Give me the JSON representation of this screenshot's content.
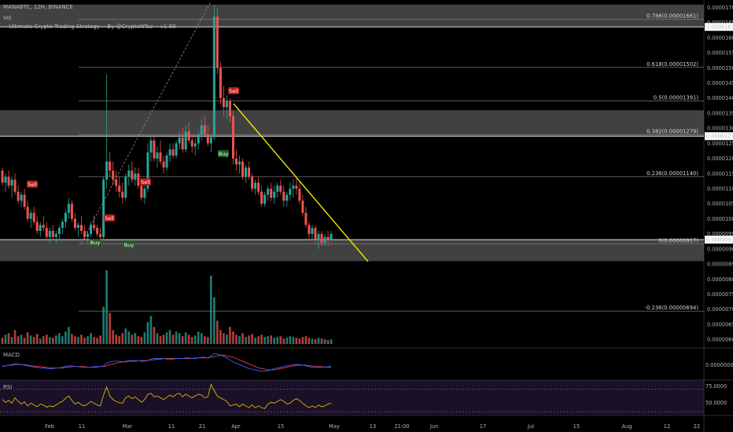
{
  "header": {
    "symbol_line": "MANABTC, 12H, BINANCE",
    "vol_label": "Vol",
    "indicator_line": "-- Ultimate Crypto Trading Strategy -- By @CryptoNTez -- v1.89"
  },
  "colors": {
    "up": "#26a69a",
    "down": "#ef5350",
    "zone": "#5a5a5a",
    "trendline": "#f5e300",
    "rsi_band": "#1a1028",
    "rsi_line": "#d4b800",
    "macd_line": "#2962ff",
    "signal_line": "#f23645",
    "sell_box": "#b71c1c",
    "buy_box": "#1b5e20",
    "price_tag": "#ffffff"
  },
  "chart_data": {
    "type": "candlestick",
    "symbol": "MANABTC",
    "timeframe": "12H",
    "exchange": "BINANCE",
    "x_tick_labels": [
      "Feb",
      "11",
      "Mar",
      "11",
      "21",
      "Apr",
      "15",
      "May",
      "13",
      "21:00",
      "Jun",
      "17",
      "Jul",
      "15",
      "Aug",
      "12",
      "22"
    ],
    "y_ticks": [
      "0.00001700",
      "0.00001650",
      "0.00001600",
      "0.00001550",
      "0.00001500",
      "0.00001450",
      "0.00001400",
      "0.00001350",
      "0.00001300",
      "0.00001250",
      "0.00001200",
      "0.00001150",
      "0.00001100",
      "0.00001050",
      "0.00001000",
      "0.00000950",
      "0.00000900",
      "0.00000850",
      "0.00000800",
      "0.00000750",
      "0.00000700",
      "0.00000650",
      "0.00000600"
    ],
    "ylim": [
      5.8e-06,
      1.72e-05
    ],
    "price_tags": [
      "0.00001636",
      "0.00001274",
      "0.00000931"
    ],
    "fib_levels": [
      {
        "label": "0.786(0.00001661)",
        "value": 1.661e-05
      },
      {
        "label": "0.618(0.00001502)",
        "value": 1.502e-05
      },
      {
        "label": "0.5(0.00001391)",
        "value": 1.391e-05
      },
      {
        "label": "0.382(0.00001279)",
        "value": 1.279e-05
      },
      {
        "label": "0.236(0.00001140)",
        "value": 1.14e-05
      },
      {
        "label": "0(0.00000917)",
        "value": 9.17e-06
      },
      {
        "label": "-0.236(0.00000694)",
        "value": 6.94e-06
      }
    ],
    "zones": [
      {
        "from": 1.636e-05,
        "to": 1.71e-05
      },
      {
        "from": 1.274e-05,
        "to": 1.36e-05
      },
      {
        "from": 8.6e-06,
        "to": 9.31e-06
      }
    ],
    "signals": [
      {
        "text": "Sell",
        "kind": "sell"
      },
      {
        "text": "Sell",
        "kind": "sell"
      },
      {
        "text": "Buy",
        "kind": "buy"
      },
      {
        "text": "Sell",
        "kind": "sell"
      },
      {
        "text": "Buy",
        "kind": "buy"
      },
      {
        "text": "Buy",
        "kind": "buy"
      },
      {
        "text": "Sell",
        "kind": "sell"
      }
    ],
    "macd": {
      "label": "MACD",
      "zero_tick": "0.00000000"
    },
    "rsi": {
      "label": "RSI",
      "ticks": [
        "75.0000",
        "50.0000"
      ],
      "upper": 75,
      "lower": 25
    },
    "ohlc": [
      [
        1.16e-05,
        1.17e-05,
        1.11e-05,
        1.12e-05
      ],
      [
        1.12e-05,
        1.15e-05,
        1.09e-05,
        1.14e-05
      ],
      [
        1.14e-05,
        1.16e-05,
        1.1e-05,
        1.11e-05
      ],
      [
        1.11e-05,
        1.14e-05,
        1.07e-05,
        1.13e-05
      ],
      [
        1.13e-05,
        1.15e-05,
        1.08e-05,
        1.09e-05
      ],
      [
        1.09e-05,
        1.11e-05,
        1.05e-05,
        1.06e-05
      ],
      [
        1.06e-05,
        1.09e-05,
        1.04e-05,
        1.08e-05
      ],
      [
        1.08e-05,
        1.1e-05,
        1.03e-05,
        1.04e-05
      ],
      [
        1.04e-05,
        1.06e-05,
        9.9e-06,
        1e-05
      ],
      [
        1e-05,
        1.03e-05,
        9.7e-06,
        1.02e-05
      ],
      [
        1.02e-05,
        1.04e-05,
        9.8e-06,
        9.9e-06
      ],
      [
        9.9e-06,
        1.01e-05,
        9.5e-06,
        9.6e-06
      ],
      [
        9.6e-06,
        9.9e-06,
        9.4e-06,
        9.8e-06
      ],
      [
        9.8e-06,
        1.01e-05,
        9.6e-06,
        9.7e-06
      ],
      [
        9.7e-06,
        9.9e-06,
        9.3e-06,
        9.4e-06
      ],
      [
        9.4e-06,
        9.7e-06,
        9.2e-06,
        9.6e-06
      ],
      [
        9.6e-06,
        9.8e-06,
        9.3e-06,
        9.4e-06
      ],
      [
        9.4e-06,
        9.6e-06,
        9.2e-06,
        9.5e-06
      ],
      [
        9.5e-06,
        9.8e-06,
        9.3e-06,
        9.7e-06
      ],
      [
        9.7e-06,
        1e-05,
        9.5e-06,
        9.9e-06
      ],
      [
        9.9e-06,
        1.03e-05,
        9.7e-06,
        1.02e-05
      ],
      [
        1.02e-05,
        1.07e-05,
        1e-05,
        1.05e-05
      ],
      [
        1.05e-05,
        1.06e-05,
        9.9e-06,
        1e-05
      ],
      [
        1e-05,
        1.02e-05,
        9.6e-06,
        9.7e-06
      ],
      [
        9.7e-06,
        9.9e-06,
        9.4e-06,
        9.8e-06
      ],
      [
        9.8e-06,
        1.01e-05,
        9.5e-06,
        9.6e-06
      ],
      [
        9.6e-06,
        9.8e-06,
        9.3e-06,
        9.4e-06
      ],
      [
        9.4e-06,
        9.6e-06,
        9.2e-06,
        9.5e-06
      ],
      [
        9.5e-06,
        9.9e-06,
        9.4e-06,
        9.8e-06
      ],
      [
        9.8e-06,
        1.01e-05,
        9.6e-06,
        9.7e-06
      ],
      [
        9.7e-06,
        9.8e-06,
        9.4e-06,
        9.5e-06
      ],
      [
        9.5e-06,
        9.7e-06,
        9.3e-06,
        9.4e-06
      ],
      [
        9.4e-06,
        1.14e-05,
        9.3e-06,
        1.13e-05
      ],
      [
        1.13e-05,
        1.48e-05,
        1.1e-05,
        1.19e-05
      ],
      [
        1.19e-05,
        1.22e-05,
        1.14e-05,
        1.16e-05
      ],
      [
        1.16e-05,
        1.19e-05,
        1.11e-05,
        1.13e-05
      ],
      [
        1.13e-05,
        1.16e-05,
        1.09e-05,
        1.11e-05
      ],
      [
        1.11e-05,
        1.14e-05,
        1.07e-05,
        1.09e-05
      ],
      [
        1.09e-05,
        1.12e-05,
        1.05e-05,
        1.07e-05
      ],
      [
        1.07e-05,
        1.15e-05,
        1.06e-05,
        1.14e-05
      ],
      [
        1.14e-05,
        1.18e-05,
        1.11e-05,
        1.16e-05
      ],
      [
        1.16e-05,
        1.19e-05,
        1.12e-05,
        1.13e-05
      ],
      [
        1.13e-05,
        1.17e-05,
        1.11e-05,
        1.15e-05
      ],
      [
        1.15e-05,
        1.17e-05,
        1.1e-05,
        1.11e-05
      ],
      [
        1.11e-05,
        1.13e-05,
        1.06e-05,
        1.07e-05
      ],
      [
        1.07e-05,
        1.12e-05,
        1.05e-05,
        1.1e-05
      ],
      [
        1.1e-05,
        1.25e-05,
        1.09e-05,
        1.22e-05
      ],
      [
        1.22e-05,
        1.28e-05,
        1.19e-05,
        1.26e-05
      ],
      [
        1.26e-05,
        1.28e-05,
        1.19e-05,
        1.2e-05
      ],
      [
        1.2e-05,
        1.24e-05,
        1.17e-05,
        1.22e-05
      ],
      [
        1.22e-05,
        1.26e-05,
        1.18e-05,
        1.19e-05
      ],
      [
        1.19e-05,
        1.21e-05,
        1.15e-05,
        1.17e-05
      ],
      [
        1.17e-05,
        1.22e-05,
        1.16e-05,
        1.21e-05
      ],
      [
        1.21e-05,
        1.25e-05,
        1.19e-05,
        1.23e-05
      ],
      [
        1.23e-05,
        1.25e-05,
        1.2e-05,
        1.21e-05
      ],
      [
        1.21e-05,
        1.26e-05,
        1.2e-05,
        1.25e-05
      ],
      [
        1.25e-05,
        1.29e-05,
        1.23e-05,
        1.27e-05
      ],
      [
        1.27e-05,
        1.3e-05,
        1.22e-05,
        1.23e-05
      ],
      [
        1.23e-05,
        1.31e-05,
        1.22e-05,
        1.29e-05
      ],
      [
        1.29e-05,
        1.32e-05,
        1.25e-05,
        1.26e-05
      ],
      [
        1.26e-05,
        1.28e-05,
        1.22e-05,
        1.24e-05
      ],
      [
        1.24e-05,
        1.27e-05,
        1.21e-05,
        1.25e-05
      ],
      [
        1.25e-05,
        1.29e-05,
        1.23e-05,
        1.28e-05
      ],
      [
        1.28e-05,
        1.33e-05,
        1.26e-05,
        1.31e-05
      ],
      [
        1.31e-05,
        1.34e-05,
        1.27e-05,
        1.28e-05
      ],
      [
        1.28e-05,
        1.31e-05,
        1.24e-05,
        1.25e-05
      ],
      [
        1.25e-05,
        1.28e-05,
        1.22e-05,
        1.27e-05
      ],
      [
        1.27e-05,
        1.71e-05,
        1.26e-05,
        1.67e-05
      ],
      [
        1.67e-05,
        1.7e-05,
        1.48e-05,
        1.5e-05
      ],
      [
        1.5e-05,
        1.52e-05,
        1.38e-05,
        1.4e-05
      ],
      [
        1.4e-05,
        1.44e-05,
        1.34e-05,
        1.37e-05
      ],
      [
        1.37e-05,
        1.41e-05,
        1.33e-05,
        1.39e-05
      ],
      [
        1.39e-05,
        1.4e-05,
        1.32e-05,
        1.34e-05
      ],
      [
        1.34e-05,
        1.36e-05,
        1.18e-05,
        1.2e-05
      ],
      [
        1.2e-05,
        1.23e-05,
        1.16e-05,
        1.18e-05
      ],
      [
        1.18e-05,
        1.21e-05,
        1.15e-05,
        1.19e-05
      ],
      [
        1.19e-05,
        1.2e-05,
        1.13e-05,
        1.14e-05
      ],
      [
        1.14e-05,
        1.18e-05,
        1.12e-05,
        1.17e-05
      ],
      [
        1.17e-05,
        1.19e-05,
        1.13e-05,
        1.14e-05
      ],
      [
        1.14e-05,
        1.15e-05,
        1.09e-05,
        1.1e-05
      ],
      [
        1.1e-05,
        1.13e-05,
        1.08e-05,
        1.12e-05
      ],
      [
        1.12e-05,
        1.14e-05,
        1.08e-05,
        1.09e-05
      ],
      [
        1.09e-05,
        1.11e-05,
        1.04e-05,
        1.05e-05
      ],
      [
        1.05e-05,
        1.09e-05,
        1.04e-05,
        1.08e-05
      ],
      [
        1.08e-05,
        1.11e-05,
        1.06e-05,
        1.1e-05
      ],
      [
        1.1e-05,
        1.12e-05,
        1.06e-05,
        1.07e-05
      ],
      [
        1.07e-05,
        1.11e-05,
        1.05e-05,
        1.09e-05
      ],
      [
        1.09e-05,
        1.12e-05,
        1.07e-05,
        1.11e-05
      ],
      [
        1.11e-05,
        1.13e-05,
        1.08e-05,
        1.09e-05
      ],
      [
        1.09e-05,
        1.11e-05,
        1.04e-05,
        1.06e-05
      ],
      [
        1.06e-05,
        1.09e-05,
        1.04e-05,
        1.08e-05
      ],
      [
        1.08e-05,
        1.12e-05,
        1.06e-05,
        1.1e-05
      ],
      [
        1.1e-05,
        1.13e-05,
        1.07e-05,
        1.11e-05
      ],
      [
        1.11e-05,
        1.14e-05,
        1.08e-05,
        1.1e-05
      ],
      [
        1.1e-05,
        1.12e-05,
        1.05e-05,
        1.06e-05
      ],
      [
        1.06e-05,
        1.08e-05,
        1.01e-05,
        1.02e-05
      ],
      [
        1.02e-05,
        1.04e-05,
        9.7e-06,
        9.8e-06
      ],
      [
        9.8e-06,
        9.9e-06,
        9.3e-06,
        9.5e-06
      ],
      [
        9.5e-06,
        9.8e-06,
        9.3e-06,
        9.7e-06
      ],
      [
        9.7e-06,
        9.8e-06,
        9.2e-06,
        9.3e-06
      ],
      [
        9.3e-06,
        9.6e-06,
        9e-06,
        9.5e-06
      ],
      [
        9.5e-06,
        9.6e-06,
        9.1e-06,
        9.2e-06
      ],
      [
        9.2e-06,
        9.5e-06,
        9.1e-06,
        9.4e-06
      ],
      [
        9.4e-06,
        9.6e-06,
        9.1e-06,
        9.3e-06
      ],
      [
        9.3e-06,
        9.6e-06,
        9.2e-06,
        9.5e-06
      ]
    ],
    "volume": [
      8,
      12,
      14,
      9,
      18,
      10,
      12,
      8,
      15,
      11,
      9,
      13,
      7,
      10,
      12,
      9,
      8,
      11,
      14,
      10,
      16,
      22,
      13,
      10,
      9,
      12,
      8,
      10,
      14,
      9,
      8,
      11,
      48,
      95,
      40,
      18,
      12,
      10,
      14,
      20,
      16,
      12,
      14,
      10,
      9,
      15,
      28,
      36,
      22,
      14,
      10,
      12,
      15,
      18,
      12,
      16,
      14,
      10,
      15,
      12,
      9,
      11,
      16,
      14,
      10,
      9,
      88,
      60,
      30,
      18,
      14,
      12,
      22,
      16,
      12,
      10,
      14,
      9,
      11,
      13,
      8,
      10,
      12,
      9,
      10,
      11,
      8,
      9,
      10,
      7,
      8,
      10,
      9,
      8,
      7,
      9,
      10,
      8,
      7,
      6,
      8,
      7,
      6,
      5,
      6
    ],
    "macd_values": [
      -2,
      -1,
      0,
      1,
      2,
      2,
      1,
      0,
      -1,
      -2,
      -3,
      -3,
      -4,
      -4,
      -5,
      -5,
      -5,
      -4,
      -4,
      -3,
      -2,
      -1,
      -1,
      -2,
      -2,
      -3,
      -3,
      -3,
      -3,
      -2,
      -2,
      -2,
      -1,
      3,
      5,
      6,
      6,
      6,
      5,
      6,
      7,
      7,
      7,
      7,
      6,
      6,
      7,
      9,
      10,
      10,
      10,
      10,
      9,
      9,
      9,
      10,
      10,
      10,
      11,
      11,
      10,
      10,
      11,
      12,
      12,
      11,
      14,
      17,
      17,
      15,
      13,
      11,
      8,
      5,
      3,
      1,
      -1,
      -3,
      -5,
      -6,
      -7,
      -8,
      -9,
      -9,
      -8,
      -7,
      -5,
      -4,
      -3,
      -2,
      -1,
      0,
      1,
      1,
      1,
      0,
      -1,
      -2,
      -3,
      -3,
      -3,
      -3,
      -3,
      -2,
      -2
    ],
    "signal_values": [
      -1,
      -1,
      0,
      0,
      1,
      1,
      1,
      1,
      0,
      -1,
      -1,
      -2,
      -2,
      -3,
      -3,
      -4,
      -4,
      -4,
      -4,
      -4,
      -3,
      -3,
      -2,
      -2,
      -2,
      -2,
      -2,
      -3,
      -3,
      -3,
      -3,
      -2,
      -2,
      -1,
      1,
      2,
      3,
      4,
      5,
      5,
      6,
      6,
      6,
      7,
      7,
      7,
      7,
      8,
      8,
      9,
      9,
      10,
      10,
      10,
      10,
      10,
      10,
      10,
      10,
      10,
      10,
      11,
      11,
      11,
      11,
      11,
      12,
      13,
      14,
      15,
      15,
      14,
      13,
      12,
      10,
      8,
      6,
      4,
      2,
      0,
      -2,
      -4,
      -5,
      -6,
      -7,
      -7,
      -7,
      -6,
      -5,
      -4,
      -3,
      -2,
      -1,
      0,
      0,
      0,
      0,
      -1,
      -1,
      -2,
      -2,
      -2,
      -3,
      -3,
      -3
    ],
    "rsi_values": [
      52,
      46,
      50,
      44,
      56,
      48,
      42,
      47,
      38,
      44,
      40,
      36,
      42,
      40,
      35,
      38,
      36,
      40,
      45,
      48,
      55,
      60,
      50,
      42,
      46,
      40,
      38,
      42,
      48,
      44,
      40,
      38,
      62,
      80,
      60,
      52,
      48,
      45,
      44,
      56,
      60,
      54,
      58,
      52,
      46,
      52,
      64,
      66,
      58,
      60,
      56,
      52,
      57,
      62,
      58,
      64,
      66,
      58,
      64,
      60,
      56,
      60,
      64,
      62,
      56,
      58,
      86,
      72,
      60,
      56,
      52,
      48,
      38,
      40,
      42,
      36,
      42,
      38,
      34,
      40,
      34,
      38,
      34,
      32,
      42,
      46,
      44,
      48,
      52,
      48,
      42,
      44,
      50,
      54,
      50,
      44,
      38,
      34,
      38,
      34,
      40,
      36,
      38,
      42,
      44
    ]
  }
}
